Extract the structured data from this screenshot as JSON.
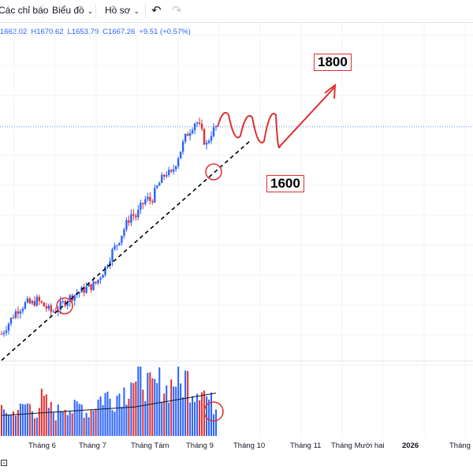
{
  "toolbar": {
    "indicators_label": "Các chỉ báo",
    "chart_type_label": "Biểu đồ",
    "profile_label": "Hồ sơ",
    "undo_icon": "undo-icon",
    "redo_icon": "redo-icon"
  },
  "ohlc": {
    "open": "1662.02",
    "high": "H1670.62",
    "low": "L1653.79",
    "close": "C1667.26",
    "change": "+9.51 (+0.57%)"
  },
  "annotations": {
    "target_high": "1800",
    "target_low": "1600"
  },
  "colors": {
    "up": "#2962ff",
    "down": "#e03030",
    "annotation": "#e03030",
    "trendline": "#000000",
    "volume_ma": "#131722",
    "price_line": "#2962ff"
  },
  "chart_data": {
    "type": "candlestick",
    "x_tick_labels": [
      "Tháng 6",
      "Tháng 7",
      "Tháng Tám",
      "Tháng 9",
      "Tháng 10",
      "Tháng 11",
      "Tháng Mười hai",
      "2026",
      "Tháng H"
    ],
    "last_close": 1667.26,
    "last_change": 9.51,
    "last_change_pct": 0.57,
    "price_path": [
      1270,
      1285,
      1300,
      1315,
      1322,
      1330,
      1327,
      1335,
      1328,
      1320,
      1312,
      1318,
      1326,
      1335,
      1342,
      1348,
      1352,
      1358,
      1362,
      1368,
      1385,
      1400,
      1425,
      1440,
      1460,
      1480,
      1500,
      1495,
      1515,
      1530,
      1525,
      1548,
      1565,
      1580,
      1575,
      1600,
      1625,
      1650,
      1665,
      1680,
      1660,
      1630,
      1655,
      1667
    ],
    "volume_path": [
      0.35,
      0.4,
      0.3,
      0.45,
      0.38,
      0.5,
      0.42,
      0.36,
      0.55,
      0.48,
      0.4,
      0.33,
      0.45,
      0.5,
      0.38,
      0.42,
      0.47,
      0.36,
      0.4,
      0.52,
      0.58,
      0.62,
      0.55,
      0.6,
      0.7,
      0.66,
      0.95,
      0.72,
      1.0,
      0.8,
      0.68,
      0.75,
      0.82,
      0.7,
      0.78,
      0.88,
      0.73,
      0.9,
      0.76,
      0.7,
      0.85,
      0.6,
      0.5,
      0.45
    ],
    "projection": [
      1667,
      1690,
      1650,
      1685,
      1640,
      1690,
      1630,
      1800
    ],
    "trendline_label": "dashed support trendline"
  }
}
